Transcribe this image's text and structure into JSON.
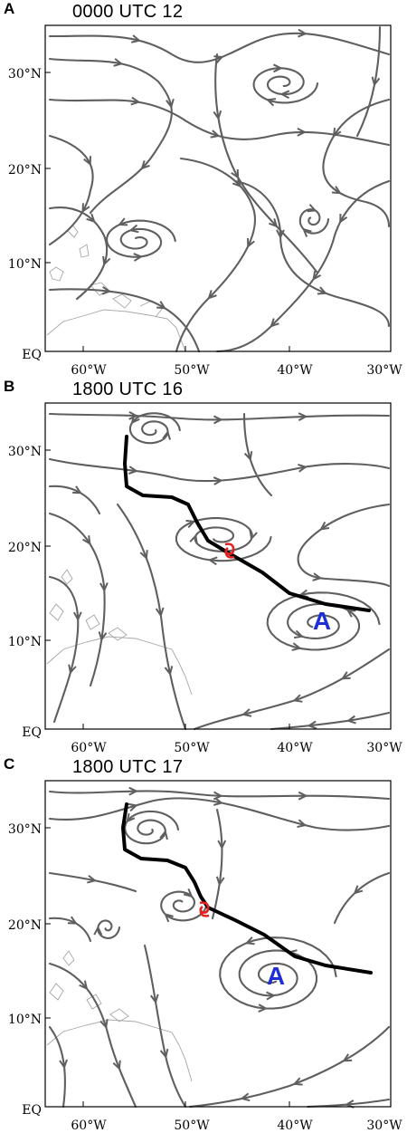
{
  "panels": [
    {
      "letter": "A",
      "time": "0000 UTC 12",
      "anticyclone_label": ""
    },
    {
      "letter": "B",
      "time": "1800 UTC 16",
      "anticyclone_label": "A"
    },
    {
      "letter": "C",
      "time": "1800 UTC 17",
      "anticyclone_label": "A"
    }
  ],
  "axes": {
    "y_ticks": [
      "30°N",
      "20°N",
      "10°N",
      "EQ"
    ],
    "x_ticks": [
      "60°W",
      "50°W",
      "40°W",
      "30°W"
    ]
  },
  "colors": {
    "streamline": "#5f5f5f",
    "track": "#000000",
    "storm_symbol": "#e8201e",
    "anticyclone_label": "#1f2fd6",
    "coastline": "#a6a6a6"
  },
  "icons": {
    "storm": "tropical-storm-icon",
    "arrow": "streamline-arrow-icon"
  }
}
